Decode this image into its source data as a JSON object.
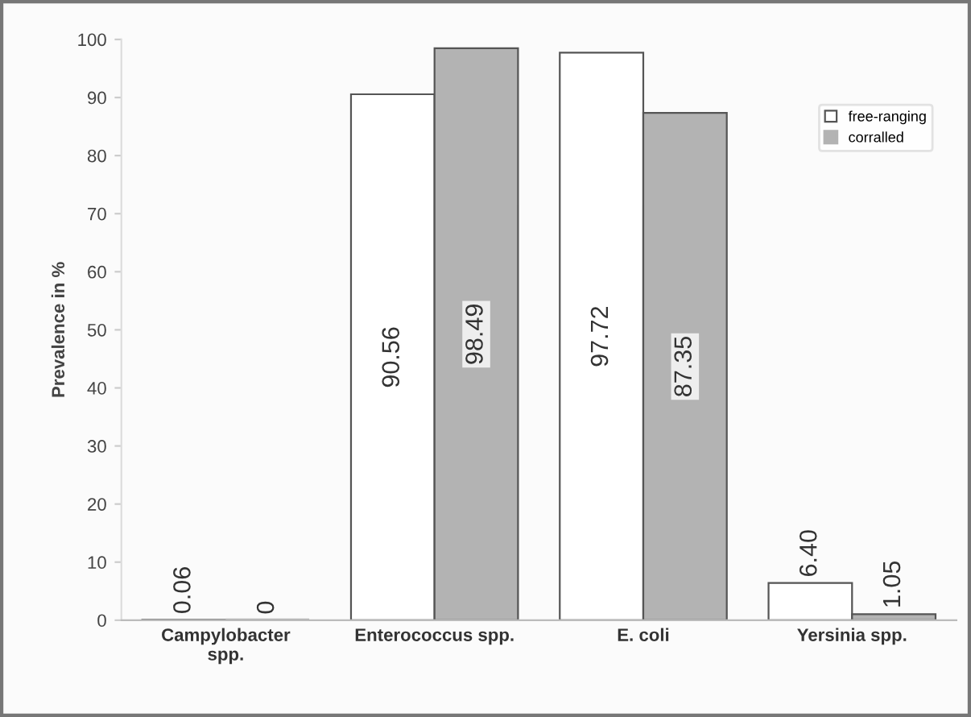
{
  "chart_data": {
    "type": "bar",
    "ylabel": "Prevalence in %",
    "categories": [
      "Campylobacter\nspp.",
      "Enterococcus spp.",
      "E. coli",
      "Yersinia spp."
    ],
    "series": [
      {
        "name": "free-ranging",
        "color": "#ffffff",
        "values": [
          0.06,
          90.56,
          97.72,
          6.4
        ],
        "value_labels": [
          "0.06",
          "90.56",
          "97.72",
          "6.40"
        ]
      },
      {
        "name": "corralled",
        "color": "#b3b3b3",
        "values": [
          0,
          98.49,
          87.35,
          1.05
        ],
        "value_labels": [
          "0",
          "98.49",
          "87.35",
          "1.05"
        ]
      }
    ],
    "ylim": [
      0,
      100
    ],
    "yticks": [
      0,
      10,
      20,
      30,
      40,
      50,
      60,
      70,
      80,
      90,
      100
    ],
    "grid": false,
    "legend": "top right"
  }
}
